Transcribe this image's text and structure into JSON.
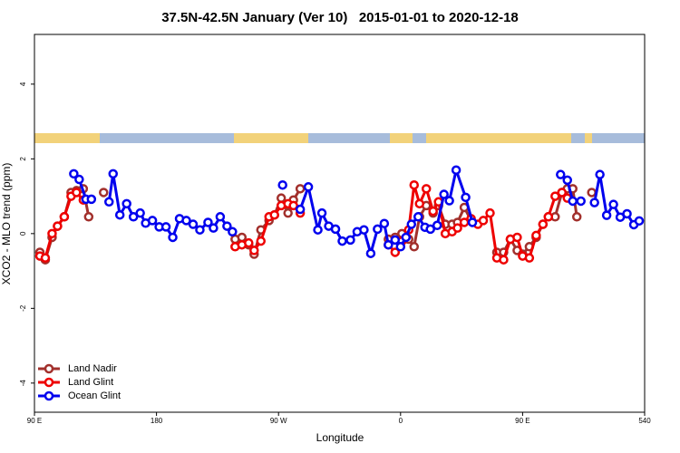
{
  "chart_data": {
    "type": "line",
    "title": "37.5N-42.5N January (Ver 10)   2015-01-01 to 2020-12-18",
    "xlabel": "Longitude",
    "ylabel": "XCO2 - MLO trend (ppm)",
    "xlim": [
      90,
      540
    ],
    "xticks": [
      {
        "value": 90,
        "label": "90 E"
      },
      180,
      {
        "value": 270,
        "label": "90 W"
      },
      {
        "value": 360,
        "label": "0"
      },
      {
        "value": 450,
        "label": "90 E"
      },
      540
    ],
    "ylim": [
      -4.78,
      5.33
    ],
    "yticks": [
      -4,
      -2,
      0,
      2,
      4
    ],
    "legend": "bottom-left",
    "series": [
      {
        "name": "Land Nadir",
        "color": "#a2302c",
        "x": [
          94,
          98,
          103,
          107,
          112,
          117,
          121,
          126,
          130,
          null,
          141,
          null,
          238,
          243,
          248,
          252,
          257,
          263,
          267,
          272,
          277,
          281,
          286,
          null,
          351,
          356,
          361,
          366,
          370,
          374,
          379,
          384,
          388,
          393,
          398,
          402,
          407,
          412,
          null,
          431,
          436,
          441,
          446,
          450,
          455,
          460,
          465,
          469,
          474,
          479,
          483,
          487,
          490,
          null,
          501
        ],
        "values": [
          -0.5,
          -0.7,
          -0.1,
          0.2,
          0.45,
          1.1,
          1.15,
          1.2,
          0.45,
          null,
          1.1,
          null,
          -0.15,
          -0.1,
          -0.3,
          -0.55,
          0.1,
          0.35,
          0.5,
          0.95,
          0.55,
          0.9,
          1.2,
          null,
          -0.15,
          -0.1,
          0,
          -0.15,
          -0.35,
          0.45,
          0.75,
          0.55,
          0.75,
          0.25,
          0.25,
          0.3,
          0.7,
          0.35,
          null,
          -0.5,
          -0.5,
          -0.15,
          -0.45,
          -0.55,
          -0.35,
          -0.1,
          0.25,
          0.45,
          0.45,
          1.1,
          1.2,
          1.2,
          0.45,
          null,
          1.1
        ]
      },
      {
        "name": "Land Glint",
        "color": "#ee0000",
        "x": [
          94,
          98,
          103,
          107,
          112,
          117,
          121,
          126,
          null,
          238,
          243,
          248,
          252,
          257,
          263,
          267,
          272,
          277,
          281,
          286,
          null,
          351,
          356,
          361,
          366,
          370,
          374,
          379,
          384,
          388,
          393,
          398,
          402,
          407,
          412,
          417,
          421,
          426,
          431,
          436,
          441,
          446,
          450,
          455,
          460,
          465,
          469,
          474,
          479,
          483
        ],
        "values": [
          -0.6,
          -0.65,
          0,
          0.2,
          0.45,
          1.0,
          1.1,
          0.9,
          null,
          -0.35,
          -0.3,
          -0.25,
          -0.45,
          -0.2,
          0.45,
          0.5,
          0.75,
          0.8,
          0.75,
          0.55,
          null,
          -0.3,
          -0.5,
          -0.2,
          0.1,
          1.3,
          0.8,
          1.2,
          0.6,
          0.85,
          0,
          0.05,
          0.15,
          0.3,
          0.4,
          0.25,
          0.35,
          0.55,
          -0.65,
          -0.7,
          -0.15,
          -0.1,
          -0.6,
          -0.65,
          -0.05,
          0.25,
          0.45,
          1.0,
          1.1,
          0.95
        ]
      },
      {
        "name": "Ocean Glint",
        "color": "#0000ee",
        "x": [
          119,
          123,
          128,
          132,
          null,
          145,
          148,
          153,
          158,
          163,
          168,
          172,
          177,
          182,
          187,
          192,
          197,
          202,
          207,
          212,
          218,
          222,
          227,
          232,
          236,
          null,
          273,
          null,
          286,
          292,
          299,
          302,
          307,
          312,
          317,
          323,
          328,
          333,
          338,
          343,
          348,
          351,
          356,
          360,
          364,
          368,
          373,
          378,
          382,
          387,
          392,
          396,
          401,
          408,
          413,
          null,
          478,
          483,
          487,
          493,
          null,
          503,
          507,
          512,
          517,
          522,
          527,
          532,
          536
        ],
        "values": [
          1.6,
          1.45,
          0.92,
          0.92,
          null,
          0.85,
          1.6,
          0.5,
          0.8,
          0.45,
          0.55,
          0.28,
          0.35,
          0.18,
          0.18,
          -0.1,
          0.4,
          0.35,
          0.25,
          0.1,
          0.3,
          0.15,
          0.45,
          0.2,
          0.05,
          null,
          1.3,
          null,
          0.65,
          1.25,
          0.1,
          0.55,
          0.2,
          0.12,
          -0.2,
          -0.17,
          0.05,
          0.1,
          -0.53,
          0.12,
          0.27,
          -0.3,
          -0.17,
          -0.35,
          -0.1,
          0.25,
          0.45,
          0.17,
          0.12,
          0.22,
          1.05,
          0.88,
          1.7,
          0.97,
          0.3,
          null,
          1.58,
          1.43,
          0.87,
          0.87,
          null,
          0.83,
          1.58,
          0.49,
          0.78,
          0.44,
          0.53,
          0.24,
          0.34
        ]
      }
    ]
  }
}
